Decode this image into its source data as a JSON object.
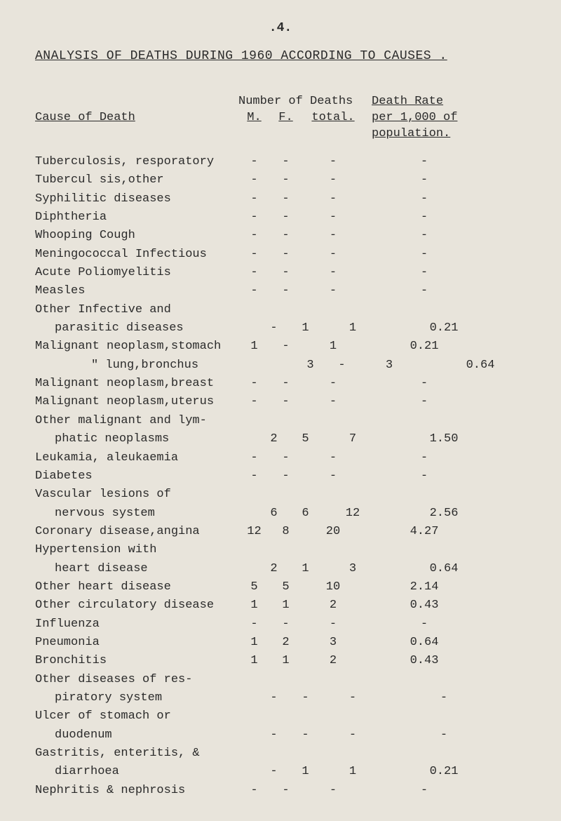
{
  "page_number": ".4.",
  "title": "ANALYSIS OF DEATHS DURING 1960 ACCORDING TO CAUSES .",
  "headers": {
    "number_of_deaths": "Number of Deaths",
    "death_rate": "Death Rate",
    "cause": "Cause of Death",
    "m": "M.",
    "f": "F.",
    "total": "total.",
    "per_1000": "per 1,000 of",
    "population": "population."
  },
  "rows": [
    {
      "label": "Tuberculosis, resporatory",
      "m": "-",
      "f": "-",
      "total": "-",
      "rate": "-"
    },
    {
      "label": "Tubercul sis,other",
      "m": "-",
      "f": "-",
      "total": "-",
      "rate": "-"
    },
    {
      "label": "Syphilitic diseases",
      "m": "-",
      "f": "-",
      "total": "-",
      "rate": "-"
    },
    {
      "label": "Diphtheria",
      "m": "-",
      "f": "-",
      "total": "-",
      "rate": "-"
    },
    {
      "label": "Whooping Cough",
      "m": "-",
      "f": "-",
      "total": "-",
      "rate": "-"
    },
    {
      "label": "Meningococcal Infectious",
      "m": "-",
      "f": "-",
      "total": "-",
      "rate": "-"
    },
    {
      "label": "Acute Poliomyelitis",
      "m": "-",
      "f": "-",
      "total": "-",
      "rate": "-"
    },
    {
      "label": "Measles",
      "m": "-",
      "f": "-",
      "total": "-",
      "rate": "-"
    },
    {
      "label": "Other Infective and",
      "m": "",
      "f": "",
      "total": "",
      "rate": ""
    },
    {
      "label": "parasitic diseases",
      "indent": 1,
      "m": "-",
      "f": "1",
      "total": "1",
      "rate": "0.21"
    },
    {
      "label": "Malignant neoplasm,stomach",
      "m": "1",
      "f": "-",
      "total": "1",
      "rate": "0.21"
    },
    {
      "label": "\" lung,bronchus",
      "indent": 2,
      "m": "3",
      "f": "-",
      "total": "3",
      "rate": "0.64"
    },
    {
      "label": "Malignant neoplasm,breast",
      "m": "-",
      "f": "-",
      "total": "-",
      "rate": "-"
    },
    {
      "label": "Malignant neoplasm,uterus",
      "m": "-",
      "f": "-",
      "total": "-",
      "rate": "-"
    },
    {
      "label": "Other malignant and lym-",
      "m": "",
      "f": "",
      "total": "",
      "rate": ""
    },
    {
      "label": "phatic neoplasms",
      "indent": 1,
      "m": "2",
      "f": "5",
      "total": "7",
      "rate": "1.50"
    },
    {
      "label": "Leukamia, aleukaemia",
      "m": "-",
      "f": "-",
      "total": "-",
      "rate": "-"
    },
    {
      "label": "Diabetes",
      "m": "-",
      "f": "-",
      "total": "-",
      "rate": "-"
    },
    {
      "label": "Vascular lesions of",
      "m": "",
      "f": "",
      "total": "",
      "rate": ""
    },
    {
      "label": "nervous system",
      "indent": 1,
      "m": "6",
      "f": "6",
      "total": "12",
      "rate": "2.56"
    },
    {
      "label": "Coronary disease,angina",
      "m": "12",
      "f": "8",
      "total": "20",
      "rate": "4.27"
    },
    {
      "label": "Hypertension with",
      "m": "",
      "f": "",
      "total": "",
      "rate": ""
    },
    {
      "label": "heart disease",
      "indent": 1,
      "m": "2",
      "f": "1",
      "total": "3",
      "rate": "0.64"
    },
    {
      "label": "Other heart disease",
      "m": "5",
      "f": "5",
      "total": "10",
      "rate": "2.14"
    },
    {
      "label": "Other circulatory disease",
      "m": "1",
      "f": "1",
      "total": "2",
      "rate": "0.43"
    },
    {
      "label": "Influenza",
      "m": "-",
      "f": "-",
      "total": "-",
      "rate": "-"
    },
    {
      "label": "Pneumonia",
      "m": "1",
      "f": "2",
      "total": "3",
      "rate": "0.64"
    },
    {
      "label": "Bronchitis",
      "m": "1",
      "f": "1",
      "total": "2",
      "rate": "0.43"
    },
    {
      "label": "Other diseases of res-",
      "m": "",
      "f": "",
      "total": "",
      "rate": ""
    },
    {
      "label": "piratory system",
      "indent": 1,
      "m": "-",
      "f": "-",
      "total": "-",
      "rate": "-"
    },
    {
      "label": "Ulcer of stomach or",
      "m": "",
      "f": "",
      "total": "",
      "rate": ""
    },
    {
      "label": "duodenum",
      "indent": 1,
      "m": "-",
      "f": "-",
      "total": "-",
      "rate": "-"
    },
    {
      "label": "Gastritis, enteritis, &",
      "m": "",
      "f": "",
      "total": "",
      "rate": ""
    },
    {
      "label": "diarrhoea",
      "indent": 1,
      "m": "-",
      "f": "1",
      "total": "1",
      "rate": "0.21"
    },
    {
      "label": "Nephritis & nephrosis",
      "m": "-",
      "f": "-",
      "total": "-",
      "rate": "-"
    }
  ]
}
